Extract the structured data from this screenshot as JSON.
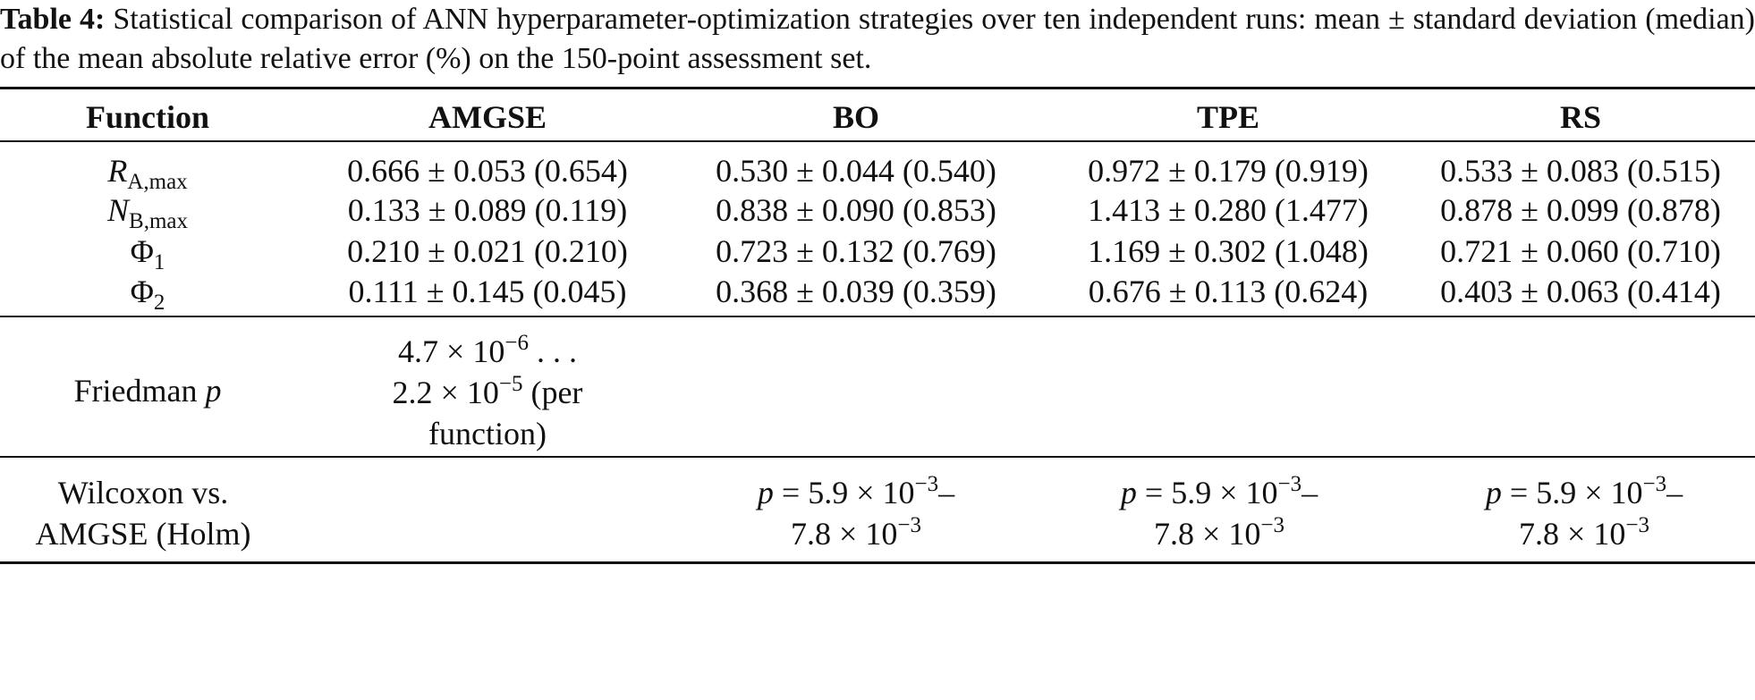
{
  "caption": {
    "label": "Table 4:",
    "text": "Statistical comparison of ANN hyperparameter-optimization strategies over ten independent runs: mean ± standard deviation (median) of the mean absolute relative error (%) on the 150-point assessment set."
  },
  "table": {
    "headers": [
      "Function",
      "AMGSE",
      "BO",
      "TPE",
      "RS"
    ],
    "rows": [
      {
        "fn_main": "R",
        "fn_sub": "A,max",
        "cells": [
          "0.666 ± 0.053 (0.654)",
          "0.530 ± 0.044 (0.540)",
          "0.972 ± 0.179 (0.919)",
          "0.533 ± 0.083 (0.515)"
        ]
      },
      {
        "fn_main": "N",
        "fn_sub": "B,max",
        "cells": [
          "0.133 ± 0.089 (0.119)",
          "0.838 ± 0.090 (0.853)",
          "1.413 ± 0.280 (1.477)",
          "0.878 ± 0.099 (0.878)"
        ]
      },
      {
        "fn_main": "Φ",
        "fn_sub": "1",
        "cells": [
          "0.210 ± 0.021 (0.210)",
          "0.723 ± 0.132 (0.769)",
          "1.169 ± 0.302 (1.048)",
          "0.721 ± 0.060 (0.710)"
        ]
      },
      {
        "fn_main": "Φ",
        "fn_sub": "2",
        "cells": [
          "0.111 ± 0.145 (0.045)",
          "0.368 ± 0.039 (0.359)",
          "0.676 ± 0.113 (0.624)",
          "0.403 ± 0.063 (0.414)"
        ]
      }
    ],
    "friedman": {
      "label_text": "Friedman ",
      "label_var": "p",
      "line1_pre": "4.7 × 10",
      "line1_exp": "−6",
      "line1_post": " . . .",
      "line2_pre": "2.2 × 10",
      "line2_exp": "−5",
      "line2_post": " (per",
      "line3": "function)"
    },
    "wilcoxon": {
      "label_line1": "Wilcoxon vs.",
      "label_line2": "AMGSE (Holm)",
      "p_var": "p",
      "line1_pre": " = 5.9 × 10",
      "line1_exp": "−3",
      "line1_post": "–",
      "line2_pre": "7.8 × 10",
      "line2_exp": "−3"
    }
  }
}
